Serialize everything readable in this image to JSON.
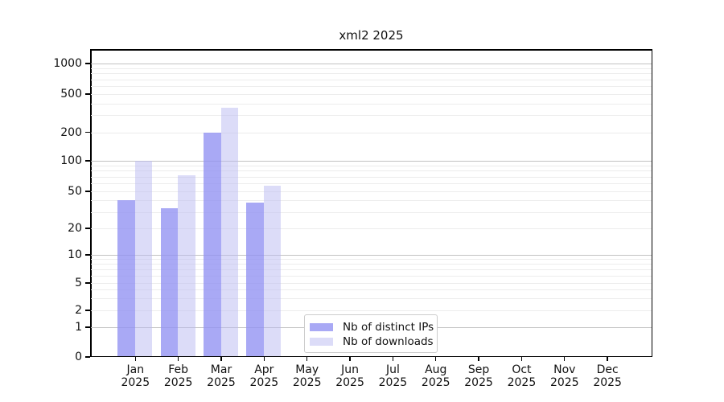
{
  "chart_data": {
    "type": "bar",
    "title": "xml2 2025",
    "year": "2025",
    "categories": [
      "Jan",
      "Feb",
      "Mar",
      "Apr",
      "May",
      "Jun",
      "Jul",
      "Aug",
      "Sep",
      "Oct",
      "Nov",
      "Dec"
    ],
    "series": [
      {
        "name": "Nb of distinct IPs",
        "color": "#a9a9f5",
        "fill": "rgba(148,148,243,0.8)",
        "values": [
          40,
          33,
          200,
          38,
          0,
          0,
          0,
          0,
          0,
          0,
          0,
          0
        ]
      },
      {
        "name": "Nb of downloads",
        "color": "#dcdcf8",
        "fill": "rgba(185,185,241,0.5)",
        "values": [
          100,
          72,
          360,
          57,
          0,
          0,
          0,
          0,
          0,
          0,
          0,
          0
        ]
      }
    ],
    "yticks": [
      0,
      1,
      2,
      5,
      10,
      20,
      50,
      100,
      200,
      500,
      1000
    ],
    "yscale": "log-like",
    "ylim": [
      0,
      1400
    ],
    "grid": {
      "major": true,
      "minor": true
    },
    "legend_position": "lower center"
  },
  "colors": {
    "major_grid": "#c3c3c3",
    "minor_grid": "#ececec",
    "spine": "#000000",
    "text": "#111111"
  }
}
